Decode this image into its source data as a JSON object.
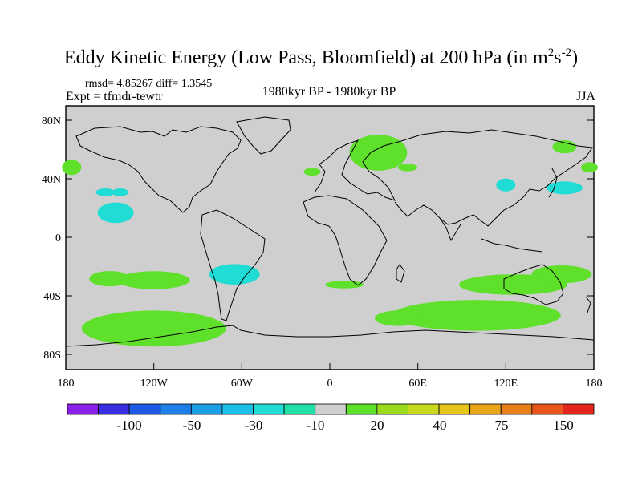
{
  "title": "Eddy Kinetic Energy (Low Pass, Bloomfield) at 200 hPa (in m",
  "title_units_sup1": "2",
  "title_units_s": "s",
  "title_units_sup2": "-2",
  "title_close": ")",
  "stats": "rmsd= 4.85267 diff= 1.3545",
  "experiment": "Expt = tfmdr-tewtr",
  "period": "1980kyr BP - 1980kyr BP",
  "season": "JJA",
  "chart_data": {
    "type": "map",
    "projection": "cylindrical-equidistant",
    "lon_range": [
      -180,
      180
    ],
    "lat_range": [
      -90,
      90
    ],
    "lat_ticks": [
      "80N",
      "40N",
      "0",
      "40S",
      "80S"
    ],
    "lon_ticks": [
      "180",
      "120W",
      "60W",
      "0",
      "60E",
      "120E",
      "180"
    ],
    "colorbar": {
      "labels": [
        "-100",
        "-50",
        "-30",
        "-10",
        "20",
        "40",
        "75",
        "150"
      ],
      "colors": [
        "#8a1fe8",
        "#3a2fe0",
        "#1f5ae6",
        "#1f7fe8",
        "#1a9ee6",
        "#1cc0e6",
        "#1fdcd4",
        "#20e0a8",
        "#cfcfcf",
        "#5fe02a",
        "#9adb1e",
        "#c8d81c",
        "#e6c51a",
        "#e8a51a",
        "#e8801a",
        "#e8561c",
        "#e3261c"
      ]
    },
    "features": [
      {
        "name": "positive-anomaly-nw-pacific-edge",
        "lon": -176,
        "lat": 48,
        "class": "20"
      },
      {
        "name": "negative-anomaly-hawaii-west",
        "lon": -153,
        "lat": 31,
        "class": "-10"
      },
      {
        "name": "negative-anomaly-hawaii-east",
        "lon": -143,
        "lat": 31,
        "class": "-10"
      },
      {
        "name": "negative-anomaly-subtropical-pacific",
        "lon": -146,
        "lat": 17,
        "class": "-10"
      },
      {
        "name": "positive-anomaly-north-atlantic",
        "lon": -12,
        "lat": 45,
        "class": "20"
      },
      {
        "name": "positive-anomaly-central-asia",
        "lon": 33,
        "lat": 58,
        "class": "20"
      },
      {
        "name": "positive-anomaly-siberia",
        "lon": 53,
        "lat": 48,
        "class": "20"
      },
      {
        "name": "positive-anomaly-bering",
        "lon": 160,
        "lat": 62,
        "class": "20"
      },
      {
        "name": "positive-anomaly-kamchatka",
        "lon": 177,
        "lat": 48,
        "class": "20"
      },
      {
        "name": "negative-anomaly-japan-east",
        "lon": 160,
        "lat": 34,
        "class": "-10"
      },
      {
        "name": "negative-anomaly-yellow-sea",
        "lon": 120,
        "lat": 36,
        "class": "-10"
      },
      {
        "name": "positive-anomaly-south-pacific-west",
        "lon": -150,
        "lat": -28,
        "class": "20"
      },
      {
        "name": "positive-anomaly-south-pacific-central",
        "lon": -120,
        "lat": -29,
        "class": "20"
      },
      {
        "name": "negative-anomaly-south-america",
        "lon": -65,
        "lat": -25,
        "class": "-10"
      },
      {
        "name": "positive-anomaly-south-atlantic",
        "lon": 10,
        "lat": -32,
        "class": "20"
      },
      {
        "name": "positive-anomaly-south-pacific-storm-track",
        "lon": -120,
        "lat": -62,
        "class": "20"
      },
      {
        "name": "positive-anomaly-southern-indian-ocean",
        "lon": 100,
        "lat": -53,
        "class": "20"
      },
      {
        "name": "positive-anomaly-south-indian-small",
        "lon": 47,
        "lat": -55,
        "class": "20"
      },
      {
        "name": "positive-anomaly-australia",
        "lon": 125,
        "lat": -32,
        "class": "20"
      },
      {
        "name": "positive-anomaly-tasman",
        "lon": 158,
        "lat": -25,
        "class": "20"
      }
    ]
  }
}
